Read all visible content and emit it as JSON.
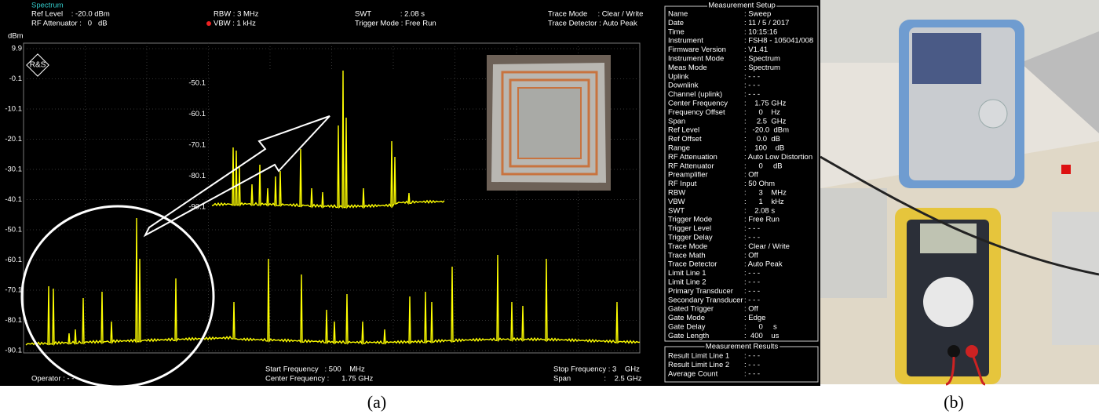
{
  "screen": {
    "header": {
      "title": "Spectrum",
      "ref_level": "Ref Level    : -20.0 dBm",
      "rf_attenuator": "RF Attenuator :   0   dB",
      "rbw": "RBW : 3 MHz",
      "vbw": "VBW : 1 kHz",
      "swt": "SWT              : 2.08 s",
      "trigger_mode": "Trigger Mode : Free Run",
      "trace_mode": "Trace Mode     : Clear / Write",
      "trace_detector": "Trace Detector : Auto Peak",
      "unit": "dBm"
    },
    "y_labels": [
      "9.9",
      "-0.1",
      "-10.1",
      "-20.1",
      "-30.1",
      "-40.1",
      "-50.1",
      "-60.1",
      "-70.1",
      "-80.1",
      "-90.1"
    ],
    "inset_labels": [
      "-50.1",
      "-60.1",
      "-70.1",
      "-80.1",
      "-90.1"
    ],
    "footer": {
      "start": "Start Frequency   : 500    MHz",
      "center": "Center Frequency :      1.75 GHz",
      "stop": "Stop Frequency : 3    GHz",
      "span": "Span                :    2.5 GHz",
      "operator": "Operator : - - -"
    },
    "setup": {
      "title": "Measurement Setup",
      "rows": [
        [
          "Name",
          ": Sweep"
        ],
        [
          "Date",
          ": 11 / 5 / 2017"
        ],
        [
          "Time",
          ": 10:15:16"
        ],
        [
          "Instrument",
          ": FSH8 - 105041/008"
        ],
        [
          "Firmware Version",
          ": V1.41"
        ],
        [
          "Instrument Mode",
          ": Spectrum"
        ],
        [
          "Meas Mode",
          ": Spectrum"
        ],
        [
          "Uplink",
          ": - - -"
        ],
        [
          "Downlink",
          ": - - -"
        ],
        [
          "Channel (uplink)",
          ": - - -"
        ],
        [
          "Center Frequency",
          ":    1.75 GHz"
        ],
        [
          "Frequency Offset",
          ":      0    Hz"
        ],
        [
          "Span",
          ":     2.5  GHz"
        ],
        [
          "Ref Level",
          ":   -20.0  dBm"
        ],
        [
          "Ref Offset",
          ":     0.0  dB"
        ],
        [
          "Range",
          ":    100    dB"
        ],
        [
          "RF Attenuation",
          ": Auto Low Distortion"
        ],
        [
          "RF Attenuator",
          ":      0     dB"
        ],
        [
          "Preamplifier",
          ": Off"
        ],
        [
          "RF Input",
          ": 50 Ohm"
        ],
        [
          "RBW",
          ":      3    MHz"
        ],
        [
          "VBW",
          ":      1    kHz"
        ],
        [
          "SWT",
          ":    2.08 s"
        ],
        [
          "Trigger Mode",
          ": Free Run"
        ],
        [
          "Trigger Level",
          ": - - -"
        ],
        [
          "Trigger Delay",
          ": - - -"
        ],
        [
          "Trace Mode",
          ": Clear / Write"
        ],
        [
          "Trace Math",
          ": Off"
        ],
        [
          "Trace Detector",
          ": Auto Peak"
        ],
        [
          "Limit Line 1",
          ": - - -"
        ],
        [
          "Limit Line 2",
          ": - - -"
        ],
        [
          "Primary Transducer",
          ": - - -"
        ],
        [
          "Secondary Transducer",
          ": - - -"
        ],
        [
          "Gated Trigger",
          ": Off"
        ],
        [
          "Gate Mode",
          ": Edge"
        ],
        [
          "Gate Delay",
          ":      0     s"
        ],
        [
          "Gate Length",
          ":  400    us"
        ]
      ]
    },
    "results": {
      "title": "Measurement Results",
      "rows": [
        [
          "Result Limit Line 1",
          ": - - -"
        ],
        [
          "Result Limit Line 2",
          ": - - -"
        ],
        [
          "Average Count",
          ": - - -"
        ]
      ]
    }
  },
  "captions": {
    "a": "(a)",
    "b": "(b)"
  }
}
